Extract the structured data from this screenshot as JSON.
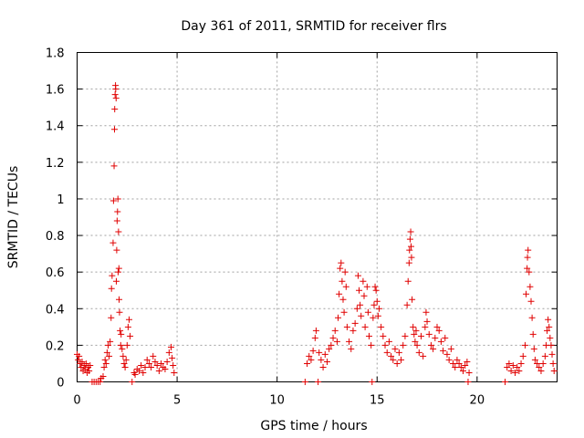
{
  "chart_data": {
    "type": "scatter",
    "title": "Day 361 of 2011, SRMTID for receiver flrs",
    "xlabel": "GPS time / hours",
    "ylabel": "SRMTID / TECUs",
    "xlim": [
      0,
      24
    ],
    "ylim": [
      0,
      1.8
    ],
    "xticks": [
      0,
      5,
      10,
      15,
      20
    ],
    "yticks": [
      0,
      0.2,
      0.4,
      0.6,
      0.8,
      1,
      1.2,
      1.4,
      1.6,
      1.8
    ],
    "ytick_labels": [
      "0",
      "0.2",
      "0.4",
      "0.6",
      "0.8",
      "1",
      "1.2",
      "1.4",
      "1.6",
      "1.8"
    ],
    "grid": true,
    "marker": "+",
    "series_color": "#e00000",
    "series": [
      {
        "name": "SRMTID",
        "points": [
          [
            0.0,
            0.15
          ],
          [
            0.05,
            0.12
          ],
          [
            0.1,
            0.14
          ],
          [
            0.15,
            0.1
          ],
          [
            0.2,
            0.08
          ],
          [
            0.25,
            0.11
          ],
          [
            0.3,
            0.06
          ],
          [
            0.35,
            0.09
          ],
          [
            0.4,
            0.07
          ],
          [
            0.45,
            0.1
          ],
          [
            0.5,
            0.05
          ],
          [
            0.55,
            0.08
          ],
          [
            0.6,
            0.06
          ],
          [
            0.65,
            0.09
          ],
          [
            0.75,
            0.0
          ],
          [
            0.85,
            0.0
          ],
          [
            0.95,
            0.0
          ],
          [
            1.05,
            0.0
          ],
          [
            1.15,
            0.0
          ],
          [
            1.2,
            0.02
          ],
          [
            1.3,
            0.03
          ],
          [
            1.35,
            0.08
          ],
          [
            1.4,
            0.12
          ],
          [
            1.45,
            0.1
          ],
          [
            1.5,
            0.16
          ],
          [
            1.55,
            0.2
          ],
          [
            1.6,
            0.14
          ],
          [
            1.65,
            0.22
          ],
          [
            1.7,
            0.35
          ],
          [
            1.72,
            0.51
          ],
          [
            1.75,
            0.58
          ],
          [
            1.8,
            0.76
          ],
          [
            1.82,
            0.99
          ],
          [
            1.85,
            1.18
          ],
          [
            1.87,
            1.38
          ],
          [
            1.88,
            1.49
          ],
          [
            1.9,
            1.57
          ],
          [
            1.92,
            1.62
          ],
          [
            1.93,
            1.6
          ],
          [
            1.95,
            1.55
          ],
          [
            1.96,
            0.55
          ],
          [
            1.98,
            0.72
          ],
          [
            2.0,
            0.88
          ],
          [
            2.02,
            0.93
          ],
          [
            2.04,
            1.0
          ],
          [
            2.05,
            0.6
          ],
          [
            2.07,
            0.82
          ],
          [
            2.09,
            0.62
          ],
          [
            2.1,
            0.45
          ],
          [
            2.12,
            0.38
          ],
          [
            2.15,
            0.28
          ],
          [
            2.18,
            0.2
          ],
          [
            2.2,
            0.26
          ],
          [
            2.25,
            0.18
          ],
          [
            2.3,
            0.14
          ],
          [
            2.35,
            0.1
          ],
          [
            2.4,
            0.08
          ],
          [
            2.45,
            0.12
          ],
          [
            2.5,
            0.2
          ],
          [
            2.55,
            0.3
          ],
          [
            2.6,
            0.34
          ],
          [
            2.65,
            0.25
          ],
          [
            2.75,
            0.0
          ],
          [
            2.85,
            0.05
          ],
          [
            2.9,
            0.04
          ],
          [
            3.0,
            0.07
          ],
          [
            3.1,
            0.06
          ],
          [
            3.2,
            0.09
          ],
          [
            3.3,
            0.05
          ],
          [
            3.4,
            0.08
          ],
          [
            3.5,
            0.12
          ],
          [
            3.6,
            0.1
          ],
          [
            3.7,
            0.08
          ],
          [
            3.8,
            0.14
          ],
          [
            3.9,
            0.11
          ],
          [
            4.0,
            0.09
          ],
          [
            4.1,
            0.06
          ],
          [
            4.2,
            0.1
          ],
          [
            4.3,
            0.08
          ],
          [
            4.4,
            0.07
          ],
          [
            4.5,
            0.11
          ],
          [
            4.6,
            0.16
          ],
          [
            4.7,
            0.19
          ],
          [
            4.75,
            0.13
          ],
          [
            4.8,
            0.09
          ],
          [
            4.85,
            0.05
          ],
          [
            11.4,
            0.0
          ],
          [
            11.5,
            0.1
          ],
          [
            11.6,
            0.14
          ],
          [
            11.7,
            0.12
          ],
          [
            11.8,
            0.17
          ],
          [
            11.9,
            0.24
          ],
          [
            11.95,
            0.28
          ],
          [
            12.05,
            0.0
          ],
          [
            12.1,
            0.16
          ],
          [
            12.2,
            0.12
          ],
          [
            12.3,
            0.08
          ],
          [
            12.4,
            0.15
          ],
          [
            12.5,
            0.11
          ],
          [
            12.6,
            0.18
          ],
          [
            12.7,
            0.2
          ],
          [
            12.8,
            0.24
          ],
          [
            12.9,
            0.28
          ],
          [
            13.0,
            0.22
          ],
          [
            13.05,
            0.35
          ],
          [
            13.1,
            0.48
          ],
          [
            13.15,
            0.62
          ],
          [
            13.2,
            0.65
          ],
          [
            13.25,
            0.55
          ],
          [
            13.3,
            0.45
          ],
          [
            13.35,
            0.38
          ],
          [
            13.4,
            0.6
          ],
          [
            13.45,
            0.52
          ],
          [
            13.5,
            0.3
          ],
          [
            13.6,
            0.22
          ],
          [
            13.7,
            0.18
          ],
          [
            13.8,
            0.28
          ],
          [
            13.9,
            0.32
          ],
          [
            14.0,
            0.4
          ],
          [
            14.05,
            0.58
          ],
          [
            14.1,
            0.5
          ],
          [
            14.15,
            0.42
          ],
          [
            14.2,
            0.36
          ],
          [
            14.3,
            0.55
          ],
          [
            14.35,
            0.47
          ],
          [
            14.4,
            0.3
          ],
          [
            14.5,
            0.52
          ],
          [
            14.55,
            0.38
          ],
          [
            14.6,
            0.25
          ],
          [
            14.7,
            0.2
          ],
          [
            14.75,
            0.0
          ],
          [
            14.8,
            0.35
          ],
          [
            14.85,
            0.42
          ],
          [
            14.9,
            0.52
          ],
          [
            14.95,
            0.5
          ],
          [
            15.0,
            0.44
          ],
          [
            15.05,
            0.36
          ],
          [
            15.1,
            0.4
          ],
          [
            15.2,
            0.3
          ],
          [
            15.3,
            0.25
          ],
          [
            15.4,
            0.2
          ],
          [
            15.5,
            0.16
          ],
          [
            15.6,
            0.22
          ],
          [
            15.7,
            0.14
          ],
          [
            15.8,
            0.12
          ],
          [
            15.9,
            0.18
          ],
          [
            16.0,
            0.1
          ],
          [
            16.1,
            0.16
          ],
          [
            16.2,
            0.12
          ],
          [
            16.3,
            0.2
          ],
          [
            16.4,
            0.25
          ],
          [
            16.5,
            0.42
          ],
          [
            16.55,
            0.55
          ],
          [
            16.6,
            0.65
          ],
          [
            16.62,
            0.72
          ],
          [
            16.65,
            0.78
          ],
          [
            16.68,
            0.82
          ],
          [
            16.7,
            0.74
          ],
          [
            16.72,
            0.68
          ],
          [
            16.75,
            0.45
          ],
          [
            16.8,
            0.3
          ],
          [
            16.85,
            0.26
          ],
          [
            16.9,
            0.22
          ],
          [
            16.95,
            0.28
          ],
          [
            17.0,
            0.2
          ],
          [
            17.1,
            0.16
          ],
          [
            17.2,
            0.25
          ],
          [
            17.3,
            0.14
          ],
          [
            17.4,
            0.3
          ],
          [
            17.45,
            0.38
          ],
          [
            17.5,
            0.33
          ],
          [
            17.6,
            0.26
          ],
          [
            17.7,
            0.2
          ],
          [
            17.8,
            0.18
          ],
          [
            17.9,
            0.24
          ],
          [
            18.0,
            0.3
          ],
          [
            18.1,
            0.28
          ],
          [
            18.2,
            0.22
          ],
          [
            18.3,
            0.17
          ],
          [
            18.4,
            0.24
          ],
          [
            18.5,
            0.15
          ],
          [
            18.6,
            0.12
          ],
          [
            18.7,
            0.18
          ],
          [
            18.8,
            0.1
          ],
          [
            18.9,
            0.08
          ],
          [
            19.0,
            0.12
          ],
          [
            19.1,
            0.1
          ],
          [
            19.2,
            0.08
          ],
          [
            19.3,
            0.06
          ],
          [
            19.4,
            0.09
          ],
          [
            19.5,
            0.11
          ],
          [
            19.55,
            0.0
          ],
          [
            19.6,
            0.05
          ],
          [
            21.4,
            0.0
          ],
          [
            21.5,
            0.08
          ],
          [
            21.6,
            0.1
          ],
          [
            21.7,
            0.06
          ],
          [
            21.8,
            0.09
          ],
          [
            21.9,
            0.05
          ],
          [
            22.0,
            0.08
          ],
          [
            22.1,
            0.06
          ],
          [
            22.2,
            0.1
          ],
          [
            22.3,
            0.14
          ],
          [
            22.4,
            0.2
          ],
          [
            22.45,
            0.48
          ],
          [
            22.5,
            0.62
          ],
          [
            22.52,
            0.68
          ],
          [
            22.55,
            0.72
          ],
          [
            22.6,
            0.6
          ],
          [
            22.65,
            0.52
          ],
          [
            22.7,
            0.44
          ],
          [
            22.75,
            0.35
          ],
          [
            22.8,
            0.26
          ],
          [
            22.85,
            0.18
          ],
          [
            22.9,
            0.12
          ],
          [
            23.0,
            0.1
          ],
          [
            23.1,
            0.08
          ],
          [
            23.2,
            0.06
          ],
          [
            23.3,
            0.1
          ],
          [
            23.4,
            0.14
          ],
          [
            23.45,
            0.2
          ],
          [
            23.5,
            0.28
          ],
          [
            23.55,
            0.34
          ],
          [
            23.6,
            0.3
          ],
          [
            23.65,
            0.24
          ],
          [
            23.7,
            0.2
          ],
          [
            23.75,
            0.15
          ],
          [
            23.8,
            0.1
          ],
          [
            23.85,
            0.06
          ]
        ]
      }
    ]
  }
}
